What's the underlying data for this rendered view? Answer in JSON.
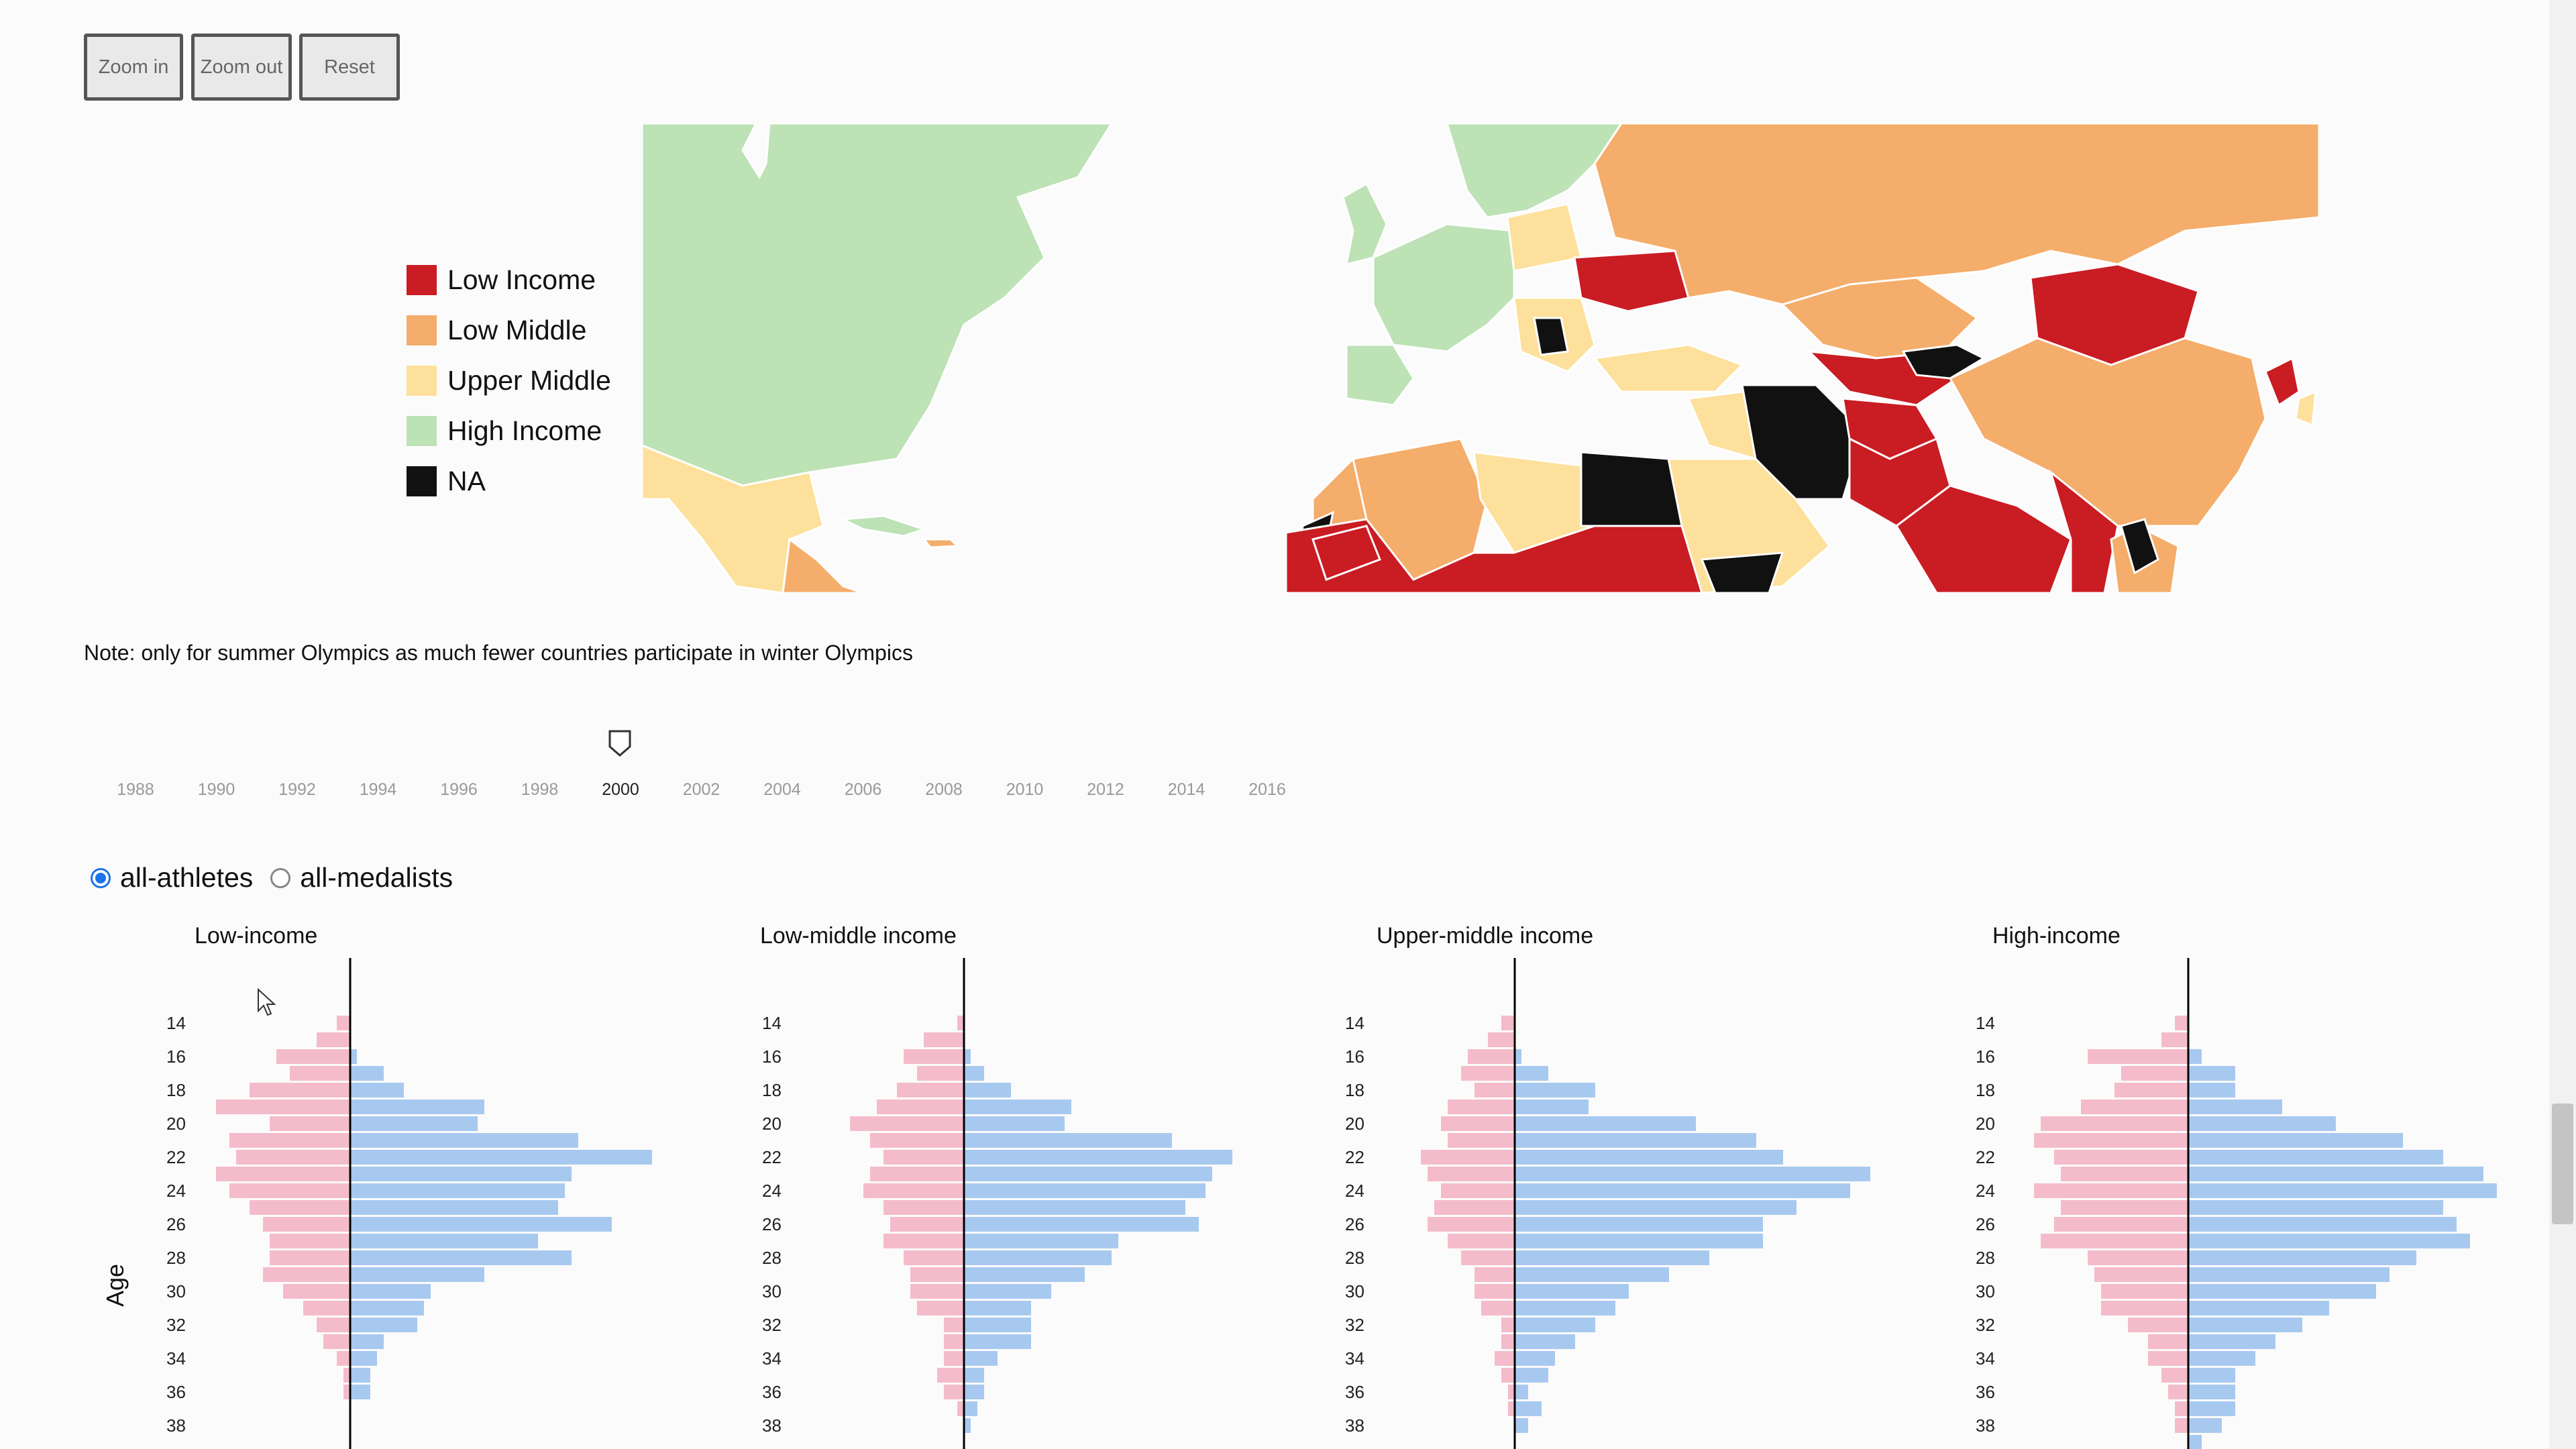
{
  "toolbar": {
    "zoom_in": "Zoom in",
    "zoom_out": "Zoom out",
    "reset": "Reset"
  },
  "legend": [
    {
      "label": "Low Income",
      "color": "#c91c23"
    },
    {
      "label": "Low Middle",
      "color": "#f4ad6a"
    },
    {
      "label": "Upper Middle",
      "color": "#fde09b"
    },
    {
      "label": "High Income",
      "color": "#bde2b5"
    },
    {
      "label": "NA",
      "color": "#111111"
    }
  ],
  "note": "Note: only for summer Olympics as much fewer countries participate in winter Olympics",
  "slider": {
    "years": [
      "1988",
      "1990",
      "1992",
      "1994",
      "1996",
      "1998",
      "2000",
      "2002",
      "2004",
      "2006",
      "2008",
      "2010",
      "2012",
      "2014",
      "2016"
    ],
    "selected": "2000"
  },
  "radios": [
    {
      "label": "all-athletes",
      "checked": true
    },
    {
      "label": "all-medalists",
      "checked": false
    }
  ],
  "colors": {
    "female": "#f4bccb",
    "male": "#a8c9ef",
    "axis": "#000000"
  },
  "chart_data": [
    {
      "type": "bar",
      "title": "Low-income",
      "ylabel": "Age",
      "ages": [
        14,
        15,
        16,
        17,
        18,
        19,
        20,
        21,
        22,
        23,
        24,
        25,
        26,
        27,
        28,
        29,
        30,
        31,
        32,
        33,
        34,
        35,
        36,
        37,
        38,
        39
      ],
      "tick_labels": [
        "14",
        "16",
        "18",
        "20",
        "22",
        "24",
        "26",
        "28",
        "30",
        "32",
        "34",
        "36",
        "38"
      ],
      "series": [
        {
          "values": [
            2,
            5,
            11,
            9,
            15,
            20,
            12,
            18,
            17,
            20,
            18,
            15,
            13,
            12,
            12,
            13,
            10,
            7,
            5,
            4,
            2,
            1,
            1,
            0,
            0,
            0
          ]
        },
        {
          "values": [
            0,
            0,
            1,
            5,
            8,
            20,
            19,
            34,
            45,
            33,
            32,
            31,
            39,
            28,
            33,
            20,
            12,
            11,
            10,
            5,
            4,
            3,
            3,
            0,
            0,
            0
          ]
        }
      ]
    },
    {
      "type": "bar",
      "title": "Low-middle income",
      "ylabel": "Age",
      "ages": [
        14,
        15,
        16,
        17,
        18,
        19,
        20,
        21,
        22,
        23,
        24,
        25,
        26,
        27,
        28,
        29,
        30,
        31,
        32,
        33,
        34,
        35,
        36,
        37,
        38,
        39
      ],
      "tick_labels": [
        "14",
        "16",
        "18",
        "20",
        "22",
        "24",
        "26",
        "28",
        "30",
        "32",
        "34",
        "36",
        "38"
      ],
      "series": [
        {
          "values": [
            1,
            6,
            9,
            7,
            10,
            13,
            17,
            14,
            12,
            14,
            15,
            12,
            11,
            12,
            9,
            8,
            8,
            7,
            3,
            3,
            3,
            4,
            3,
            1,
            0,
            0
          ]
        },
        {
          "values": [
            0,
            0,
            1,
            3,
            7,
            16,
            15,
            31,
            40,
            37,
            36,
            33,
            35,
            23,
            22,
            18,
            13,
            10,
            10,
            10,
            5,
            3,
            3,
            2,
            1,
            0
          ]
        }
      ]
    },
    {
      "type": "bar",
      "title": "Upper-middle income",
      "ylabel": "Age",
      "ages": [
        14,
        15,
        16,
        17,
        18,
        19,
        20,
        21,
        22,
        23,
        24,
        25,
        26,
        27,
        28,
        29,
        30,
        31,
        32,
        33,
        34,
        35,
        36,
        37,
        38,
        39
      ],
      "tick_labels": [
        "14",
        "16",
        "18",
        "20",
        "22",
        "24",
        "26",
        "28",
        "30",
        "32",
        "34",
        "36",
        "38"
      ],
      "series": [
        {
          "values": [
            2,
            4,
            7,
            8,
            6,
            10,
            11,
            10,
            14,
            13,
            11,
            12,
            13,
            10,
            8,
            6,
            6,
            5,
            2,
            2,
            3,
            2,
            1,
            1,
            0,
            0
          ]
        },
        {
          "values": [
            0,
            0,
            1,
            5,
            12,
            11,
            27,
            36,
            40,
            53,
            50,
            42,
            37,
            37,
            29,
            23,
            17,
            15,
            12,
            9,
            6,
            5,
            2,
            4,
            2,
            0
          ]
        }
      ]
    },
    {
      "type": "bar",
      "title": "High-income",
      "ylabel": "Age",
      "ages": [
        14,
        15,
        16,
        17,
        18,
        19,
        20,
        21,
        22,
        23,
        24,
        25,
        26,
        27,
        28,
        29,
        30,
        31,
        32,
        33,
        34,
        35,
        36,
        37,
        38,
        39
      ],
      "tick_labels": [
        "14",
        "16",
        "18",
        "20",
        "22",
        "24",
        "26",
        "28",
        "30",
        "32",
        "34",
        "36",
        "38"
      ],
      "series": [
        {
          "values": [
            2,
            4,
            15,
            10,
            11,
            16,
            22,
            23,
            20,
            19,
            23,
            19,
            20,
            22,
            15,
            14,
            13,
            13,
            9,
            6,
            6,
            4,
            3,
            2,
            2,
            0
          ]
        },
        {
          "values": [
            0,
            0,
            2,
            7,
            7,
            14,
            22,
            32,
            38,
            44,
            46,
            38,
            40,
            42,
            34,
            30,
            28,
            21,
            17,
            13,
            10,
            7,
            7,
            7,
            5,
            2
          ]
        }
      ]
    }
  ]
}
